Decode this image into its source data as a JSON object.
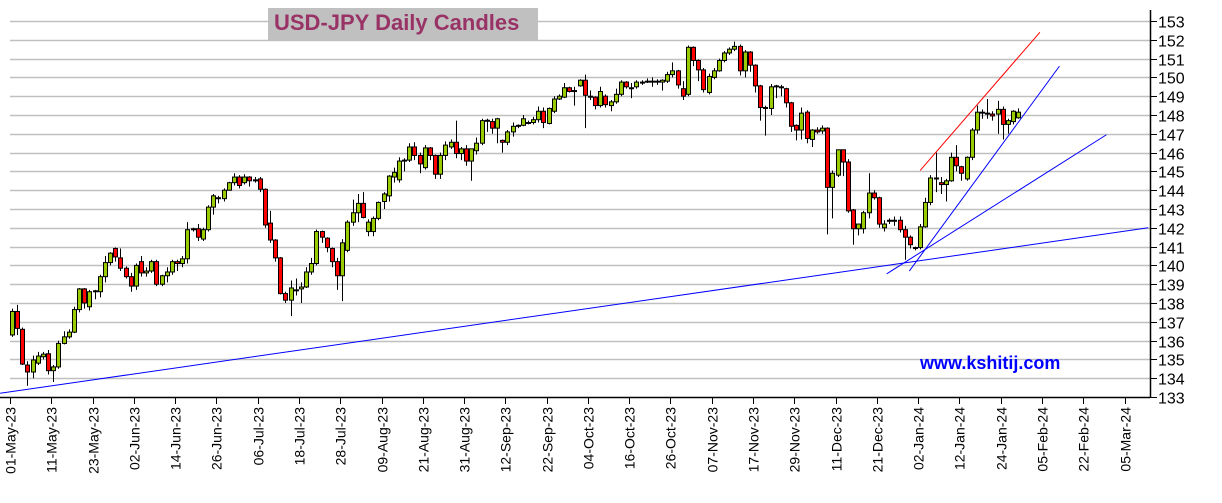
{
  "chart_data": {
    "type": "candlestick",
    "title": "USD-JPY Daily Candles",
    "watermark": "www.kshitij.com",
    "ylim": [
      133,
      153
    ],
    "y_ticks": [
      133,
      134,
      135,
      136,
      137,
      138,
      139,
      140,
      141,
      142,
      143,
      144,
      145,
      146,
      147,
      148,
      149,
      150,
      151,
      152,
      153
    ],
    "y_axis_side": "right",
    "grid": true,
    "x_tick_labels": [
      "01-May-23",
      "11-May-23",
      "23-May-23",
      "02-Jun-23",
      "14-Jun-23",
      "26-Jun-23",
      "06-Jul-23",
      "18-Jul-23",
      "28-Jul-23",
      "09-Aug-23",
      "21-Aug-23",
      "31-Aug-23",
      "12-Sep-23",
      "22-Sep-23",
      "04-Oct-23",
      "16-Oct-23",
      "26-Oct-23",
      "07-Nov-23",
      "17-Nov-23",
      "29-Nov-23",
      "11-Dec-23",
      "21-Dec-23",
      "02-Jan-24",
      "12-Jan-24",
      "24-Jan-24",
      "05-Feb-24",
      "22-Feb-24",
      "05-Mar-24"
    ],
    "trading_days_per_x_tick": 8,
    "colors": {
      "up": "#99cc00",
      "down": "#ff0000",
      "outline": "#000000",
      "grid": "#c0c0c0",
      "title": "#993366",
      "title_bg": "#c0c0c0",
      "watermark": "#0000ff"
    },
    "ohlc_fields": [
      "open",
      "high",
      "low",
      "close"
    ],
    "ohlc": [
      [
        136.3,
        137.7,
        136.2,
        137.55
      ],
      [
        137.55,
        137.9,
        136.3,
        136.65
      ],
      [
        136.6,
        136.7,
        134.7,
        134.75
      ],
      [
        134.7,
        134.9,
        133.6,
        134.33
      ],
      [
        134.33,
        135.2,
        134.0,
        134.97
      ],
      [
        134.8,
        135.4,
        134.7,
        135.18
      ],
      [
        135.14,
        135.4,
        135.0,
        135.28
      ],
      [
        135.3,
        135.5,
        134.2,
        134.4
      ],
      [
        134.4,
        134.7,
        133.8,
        134.6
      ],
      [
        134.6,
        136.0,
        134.5,
        135.85
      ],
      [
        135.85,
        136.5,
        135.8,
        136.2
      ],
      [
        136.2,
        136.6,
        136.1,
        136.45
      ],
      [
        136.45,
        137.8,
        136.4,
        137.65
      ],
      [
        137.65,
        138.8,
        137.5,
        138.75
      ],
      [
        138.75,
        138.8,
        137.7,
        138.0
      ],
      [
        137.8,
        138.7,
        137.6,
        138.6
      ],
      [
        138.6,
        138.7,
        138.2,
        138.65
      ],
      [
        138.6,
        139.5,
        138.3,
        139.4
      ],
      [
        139.4,
        140.5,
        139.1,
        140.15
      ],
      [
        140.15,
        140.7,
        140.0,
        140.65
      ],
      [
        140.9,
        140.95,
        140.2,
        140.45
      ],
      [
        140.4,
        140.9,
        139.7,
        139.85
      ],
      [
        139.85,
        139.95,
        139.3,
        139.4
      ],
      [
        139.4,
        139.6,
        138.6,
        138.9
      ],
      [
        138.9,
        140.1,
        138.7,
        140.0
      ],
      [
        140.2,
        140.5,
        139.4,
        139.6
      ],
      [
        139.6,
        139.9,
        139.4,
        139.7
      ],
      [
        139.7,
        140.3,
        139.6,
        140.2
      ],
      [
        140.2,
        140.3,
        138.9,
        139.0
      ],
      [
        139.0,
        139.5,
        138.9,
        139.45
      ],
      [
        139.45,
        139.9,
        139.1,
        139.65
      ],
      [
        139.65,
        140.3,
        139.5,
        140.2
      ],
      [
        140.2,
        140.3,
        139.7,
        140.1
      ],
      [
        140.1,
        140.5,
        139.9,
        140.35
      ],
      [
        140.35,
        142.3,
        140.1,
        141.9
      ],
      [
        141.95,
        142.0,
        141.8,
        141.95
      ],
      [
        141.95,
        142.2,
        141.3,
        141.5
      ],
      [
        141.4,
        142.0,
        141.3,
        141.9
      ],
      [
        141.9,
        143.2,
        141.8,
        143.1
      ],
      [
        143.1,
        143.8,
        142.7,
        143.7
      ],
      [
        143.6,
        143.7,
        143.3,
        143.55
      ],
      [
        143.55,
        144.1,
        143.4,
        144.0
      ],
      [
        144.0,
        144.45,
        144.0,
        144.4
      ],
      [
        144.4,
        144.9,
        144.25,
        144.7
      ],
      [
        144.7,
        144.8,
        144.1,
        144.25
      ],
      [
        144.4,
        144.85,
        144.3,
        144.7
      ],
      [
        144.7,
        144.75,
        144.2,
        144.5
      ],
      [
        144.5,
        144.7,
        144.4,
        144.55
      ],
      [
        144.6,
        144.7,
        143.9,
        144.05
      ],
      [
        144.05,
        144.1,
        142.0,
        142.15
      ],
      [
        142.25,
        142.9,
        141.2,
        141.35
      ],
      [
        141.35,
        141.4,
        140.2,
        140.4
      ],
      [
        140.4,
        140.45,
        138.45,
        138.5
      ],
      [
        138.5,
        138.6,
        138.0,
        138.15
      ],
      [
        138.15,
        139.2,
        137.3,
        138.8
      ],
      [
        138.65,
        139.3,
        138.4,
        138.7
      ],
      [
        138.75,
        139.1,
        138.0,
        138.85
      ],
      [
        138.85,
        139.9,
        138.8,
        139.65
      ],
      [
        139.65,
        140.4,
        139.5,
        140.1
      ],
      [
        140.1,
        141.9,
        140.0,
        141.8
      ],
      [
        141.8,
        141.85,
        141.2,
        141.5
      ],
      [
        141.45,
        141.5,
        140.7,
        140.95
      ],
      [
        140.9,
        140.95,
        139.9,
        140.2
      ],
      [
        140.2,
        140.4,
        138.7,
        139.45
      ],
      [
        139.45,
        141.4,
        138.1,
        141.2
      ],
      [
        140.8,
        142.4,
        140.7,
        142.3
      ],
      [
        142.3,
        143.5,
        142.1,
        142.8
      ],
      [
        142.8,
        143.8,
        142.3,
        143.3
      ],
      [
        143.3,
        143.9,
        142.5,
        142.55
      ],
      [
        141.8,
        142.45,
        141.55,
        142.3
      ],
      [
        141.8,
        142.6,
        141.55,
        142.5
      ],
      [
        142.5,
        143.4,
        142.4,
        143.35
      ],
      [
        143.4,
        143.9,
        143.0,
        143.8
      ],
      [
        143.7,
        144.8,
        143.4,
        144.75
      ],
      [
        144.7,
        145.2,
        144.4,
        144.95
      ],
      [
        144.55,
        145.75,
        144.4,
        145.55
      ],
      [
        145.6,
        145.7,
        145.0,
        145.6
      ],
      [
        145.6,
        146.5,
        145.5,
        146.3
      ],
      [
        146.3,
        146.55,
        145.6,
        145.85
      ],
      [
        145.85,
        146.0,
        144.9,
        145.4
      ],
      [
        145.2,
        146.4,
        145.1,
        146.25
      ],
      [
        146.25,
        146.3,
        145.6,
        145.85
      ],
      [
        145.85,
        145.9,
        144.6,
        144.85
      ],
      [
        144.85,
        146.0,
        144.6,
        145.85
      ],
      [
        145.85,
        146.6,
        145.6,
        146.4
      ],
      [
        146.3,
        146.7,
        146.2,
        146.55
      ],
      [
        146.55,
        147.7,
        145.7,
        145.95
      ],
      [
        145.95,
        146.3,
        145.6,
        146.2
      ],
      [
        146.2,
        146.4,
        145.3,
        145.55
      ],
      [
        145.55,
        146.2,
        144.5,
        146.2
      ],
      [
        146.1,
        146.8,
        145.9,
        146.5
      ],
      [
        146.5,
        147.8,
        146.4,
        147.7
      ],
      [
        147.72,
        147.8,
        147.1,
        147.68
      ],
      [
        147.65,
        147.8,
        147.0,
        147.3
      ],
      [
        147.3,
        147.85,
        146.5,
        147.8
      ],
      [
        146.65,
        146.7,
        146.0,
        146.55
      ],
      [
        146.55,
        147.2,
        146.4,
        147.1
      ],
      [
        147.1,
        147.6,
        146.85,
        147.4
      ],
      [
        147.45,
        147.5,
        147.3,
        147.45
      ],
      [
        147.45,
        148.0,
        147.4,
        147.8
      ],
      [
        147.6,
        147.7,
        147.5,
        147.6
      ],
      [
        147.6,
        147.9,
        147.5,
        147.75
      ],
      [
        147.75,
        148.45,
        147.6,
        148.2
      ],
      [
        148.2,
        148.4,
        147.3,
        147.6
      ],
      [
        147.55,
        148.4,
        147.5,
        148.35
      ],
      [
        148.2,
        149.0,
        148.1,
        148.85
      ],
      [
        148.85,
        149.1,
        148.8,
        149.0
      ],
      [
        148.95,
        149.7,
        148.9,
        149.45
      ],
      [
        149.45,
        149.5,
        149.2,
        149.25
      ],
      [
        149.3,
        149.5,
        148.5,
        149.3
      ],
      [
        149.55,
        149.9,
        149.5,
        149.85
      ],
      [
        149.85,
        150.15,
        147.3,
        149.05
      ],
      [
        149.0,
        149.3,
        148.8,
        149.0
      ],
      [
        148.95,
        149.0,
        148.3,
        148.5
      ],
      [
        148.5,
        149.5,
        148.4,
        149.25
      ],
      [
        149.0,
        149.1,
        148.4,
        148.55
      ],
      [
        148.5,
        148.8,
        148.2,
        148.7
      ],
      [
        148.7,
        149.4,
        148.6,
        149.1
      ],
      [
        149.1,
        149.85,
        149.0,
        149.75
      ],
      [
        149.75,
        149.8,
        149.4,
        149.5
      ],
      [
        149.4,
        149.7,
        148.9,
        149.45
      ],
      [
        149.5,
        149.85,
        149.4,
        149.75
      ],
      [
        149.75,
        149.85,
        149.6,
        149.75
      ],
      [
        149.8,
        149.95,
        149.7,
        149.8
      ],
      [
        149.8,
        150.0,
        149.5,
        149.8
      ],
      [
        149.8,
        149.9,
        149.6,
        149.75
      ],
      [
        149.75,
        149.9,
        149.3,
        149.85
      ],
      [
        149.8,
        150.3,
        149.7,
        150.15
      ],
      [
        150.15,
        150.8,
        150.0,
        150.35
      ],
      [
        150.35,
        150.4,
        149.4,
        149.6
      ],
      [
        149.4,
        149.8,
        148.8,
        149.0
      ],
      [
        149.1,
        151.7,
        149.0,
        151.6
      ],
      [
        151.6,
        151.65,
        150.6,
        150.9
      ],
      [
        150.9,
        150.95,
        149.8,
        150.4
      ],
      [
        150.4,
        150.5,
        149.2,
        149.35
      ],
      [
        149.2,
        150.2,
        149.1,
        150.05
      ],
      [
        150.0,
        150.5,
        149.9,
        150.35
      ],
      [
        150.35,
        151.0,
        150.3,
        150.9
      ],
      [
        150.9,
        151.4,
        150.8,
        151.3
      ],
      [
        151.3,
        151.6,
        151.2,
        151.5
      ],
      [
        151.5,
        151.9,
        151.4,
        151.65
      ],
      [
        151.65,
        151.75,
        150.1,
        150.35
      ],
      [
        150.35,
        151.45,
        150.0,
        151.35
      ],
      [
        151.35,
        151.4,
        150.3,
        150.65
      ],
      [
        150.65,
        150.7,
        149.2,
        149.55
      ],
      [
        149.55,
        149.6,
        147.7,
        148.4
      ],
      [
        148.4,
        148.5,
        146.9,
        148.35
      ],
      [
        148.35,
        149.65,
        148.0,
        149.5
      ],
      [
        149.55,
        149.6,
        148.9,
        149.55
      ],
      [
        149.5,
        149.6,
        149.0,
        149.45
      ],
      [
        149.4,
        149.45,
        148.4,
        148.65
      ],
      [
        148.65,
        148.7,
        147.1,
        147.4
      ],
      [
        147.45,
        147.5,
        146.65,
        147.2
      ],
      [
        147.2,
        148.4,
        146.7,
        148.1
      ],
      [
        148.15,
        148.25,
        146.5,
        146.75
      ],
      [
        146.7,
        147.25,
        146.3,
        147.2
      ],
      [
        147.2,
        147.35,
        147.0,
        147.1
      ],
      [
        147.15,
        147.45,
        147.0,
        147.3
      ],
      [
        147.3,
        147.35,
        141.65,
        144.15
      ],
      [
        144.15,
        145.05,
        142.5,
        144.9
      ],
      [
        144.8,
        146.15,
        144.7,
        146.15
      ],
      [
        146.15,
        146.15,
        144.75,
        145.5
      ],
      [
        145.5,
        145.65,
        142.8,
        142.9
      ],
      [
        142.95,
        143.0,
        141.1,
        141.95
      ],
      [
        141.95,
        142.2,
        141.6,
        142.2
      ],
      [
        141.95,
        142.9,
        141.7,
        142.8
      ],
      [
        142.8,
        144.9,
        142.5,
        143.85
      ],
      [
        143.85,
        144.0,
        143.5,
        143.6
      ],
      [
        143.6,
        143.65,
        142.0,
        142.2
      ],
      [
        142.0,
        142.4,
        141.8,
        142.2
      ],
      [
        142.35,
        142.5,
        142.2,
        142.4
      ],
      [
        142.4,
        142.6,
        142.1,
        142.4
      ],
      [
        142.4,
        142.6,
        141.75,
        141.9
      ],
      [
        141.9,
        142.1,
        140.3,
        141.5
      ],
      [
        141.5,
        141.6,
        140.9,
        141.1
      ],
      [
        140.95,
        141.0,
        140.8,
        140.95
      ],
      [
        140.95,
        142.2,
        140.85,
        142.05
      ],
      [
        142.05,
        143.6,
        142.0,
        143.35
      ],
      [
        143.35,
        144.8,
        143.2,
        144.65
      ],
      [
        144.65,
        146.0,
        143.9,
        144.65
      ],
      [
        144.4,
        144.7,
        143.8,
        144.3
      ],
      [
        144.3,
        144.6,
        143.4,
        144.5
      ],
      [
        144.5,
        146.0,
        144.45,
        145.75
      ],
      [
        145.75,
        146.4,
        145.0,
        145.3
      ],
      [
        145.25,
        145.3,
        144.5,
        144.9
      ],
      [
        144.6,
        145.8,
        144.5,
        145.75
      ],
      [
        145.75,
        147.3,
        145.6,
        147.2
      ],
      [
        147.2,
        148.5,
        147.0,
        148.15
      ],
      [
        148.15,
        148.3,
        147.8,
        148.15
      ],
      [
        148.1,
        148.85,
        147.8,
        148.1
      ],
      [
        148.05,
        148.2,
        147.7,
        147.95
      ],
      [
        148.05,
        148.75,
        147.0,
        148.3
      ],
      [
        148.3,
        148.45,
        146.7,
        147.5
      ],
      [
        147.5,
        147.8,
        147.0,
        147.7
      ],
      [
        147.65,
        148.25,
        147.5,
        148.2
      ],
      [
        147.85,
        148.35,
        147.8,
        148.15
      ]
    ],
    "trendlines": [
      {
        "color": "#ff0000",
        "from": {
          "bar": 177,
          "price": 145.05
        },
        "to": {
          "bar": 200.2,
          "price": 152.4
        }
      },
      {
        "color": "#0000ff",
        "from": {
          "bar": 174.9,
          "price": 139.7
        },
        "to": {
          "bar": 204,
          "price": 150.6
        }
      },
      {
        "color": "#0000ff",
        "from": {
          "bar": 170.5,
          "price": 139.55
        },
        "to": {
          "bar": 213.1,
          "price": 146.95
        }
      },
      {
        "color": "#0000ff",
        "from": {
          "bar": -1.3,
          "price": 133.2
        },
        "to": {
          "bar": 221.2,
          "price": 142.0
        }
      }
    ]
  }
}
